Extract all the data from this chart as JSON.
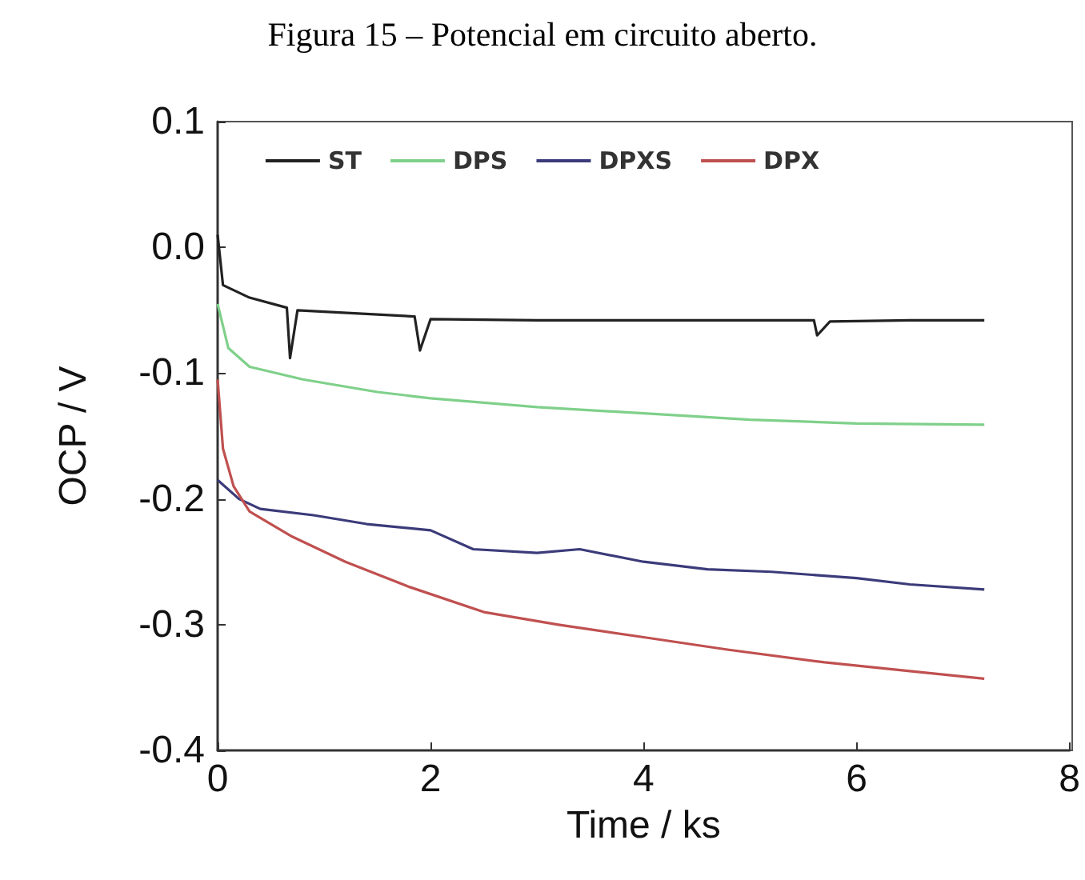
{
  "chart_data": {
    "type": "line",
    "title": "Figura 15 – Potencial em circuito aberto.",
    "xlabel": "Time / ks",
    "ylabel": "OCP / V",
    "xlim": [
      0,
      8
    ],
    "xticks": [
      0,
      2,
      4,
      6,
      8
    ],
    "ylim": [
      -0.4,
      0.1
    ],
    "yticks": [
      {
        "value": -0.4,
        "label": "-0.4"
      },
      {
        "value": -0.3,
        "label": "-0.3"
      },
      {
        "value": -0.2,
        "label": "-0.2"
      },
      {
        "value": -0.1,
        "label": "-0.1"
      },
      {
        "value": 0,
        "label": "0.0"
      },
      {
        "value": 0.1,
        "label": "0.1"
      }
    ],
    "grid": false,
    "legend": "top",
    "marker": "none",
    "line_style": "solid",
    "series": [
      {
        "name": "ST",
        "color": "#222222",
        "x": [
          0,
          0.05,
          0.3,
          0.65,
          0.68,
          0.75,
          1.85,
          1.9,
          2.0,
          3,
          4,
          5,
          5.6,
          5.63,
          5.75,
          6.5,
          7.2
        ],
        "values": [
          0.01,
          -0.03,
          -0.04,
          -0.048,
          -0.088,
          -0.05,
          -0.055,
          -0.082,
          -0.057,
          -0.058,
          -0.058,
          -0.058,
          -0.058,
          -0.07,
          -0.059,
          -0.058,
          -0.058
        ]
      },
      {
        "name": "DPS",
        "color": "#7fd08a",
        "x": [
          0,
          0.1,
          0.3,
          0.8,
          1.5,
          2,
          3,
          4,
          5,
          6,
          7.2
        ],
        "values": [
          -0.045,
          -0.08,
          -0.095,
          -0.105,
          -0.115,
          -0.12,
          -0.127,
          -0.132,
          -0.137,
          -0.14,
          -0.141
        ]
      },
      {
        "name": "DPXS",
        "color": "#3b3b7a",
        "x": [
          0,
          0.2,
          0.4,
          0.9,
          1.4,
          2,
          2.4,
          3,
          3.4,
          4,
          4.6,
          5.2,
          6,
          6.5,
          7.2
        ],
        "values": [
          -0.185,
          -0.2,
          -0.208,
          -0.213,
          -0.22,
          -0.225,
          -0.24,
          -0.243,
          -0.24,
          -0.25,
          -0.256,
          -0.258,
          -0.263,
          -0.268,
          -0.272
        ]
      },
      {
        "name": "DPX",
        "color": "#c05050",
        "x": [
          0,
          0.05,
          0.15,
          0.3,
          0.7,
          1.2,
          1.8,
          2.5,
          3.2,
          4,
          4.8,
          5.7,
          6.5,
          7.2
        ],
        "values": [
          -0.105,
          -0.16,
          -0.19,
          -0.21,
          -0.23,
          -0.25,
          -0.27,
          -0.29,
          -0.3,
          -0.31,
          -0.32,
          -0.33,
          -0.337,
          -0.343
        ]
      }
    ]
  }
}
